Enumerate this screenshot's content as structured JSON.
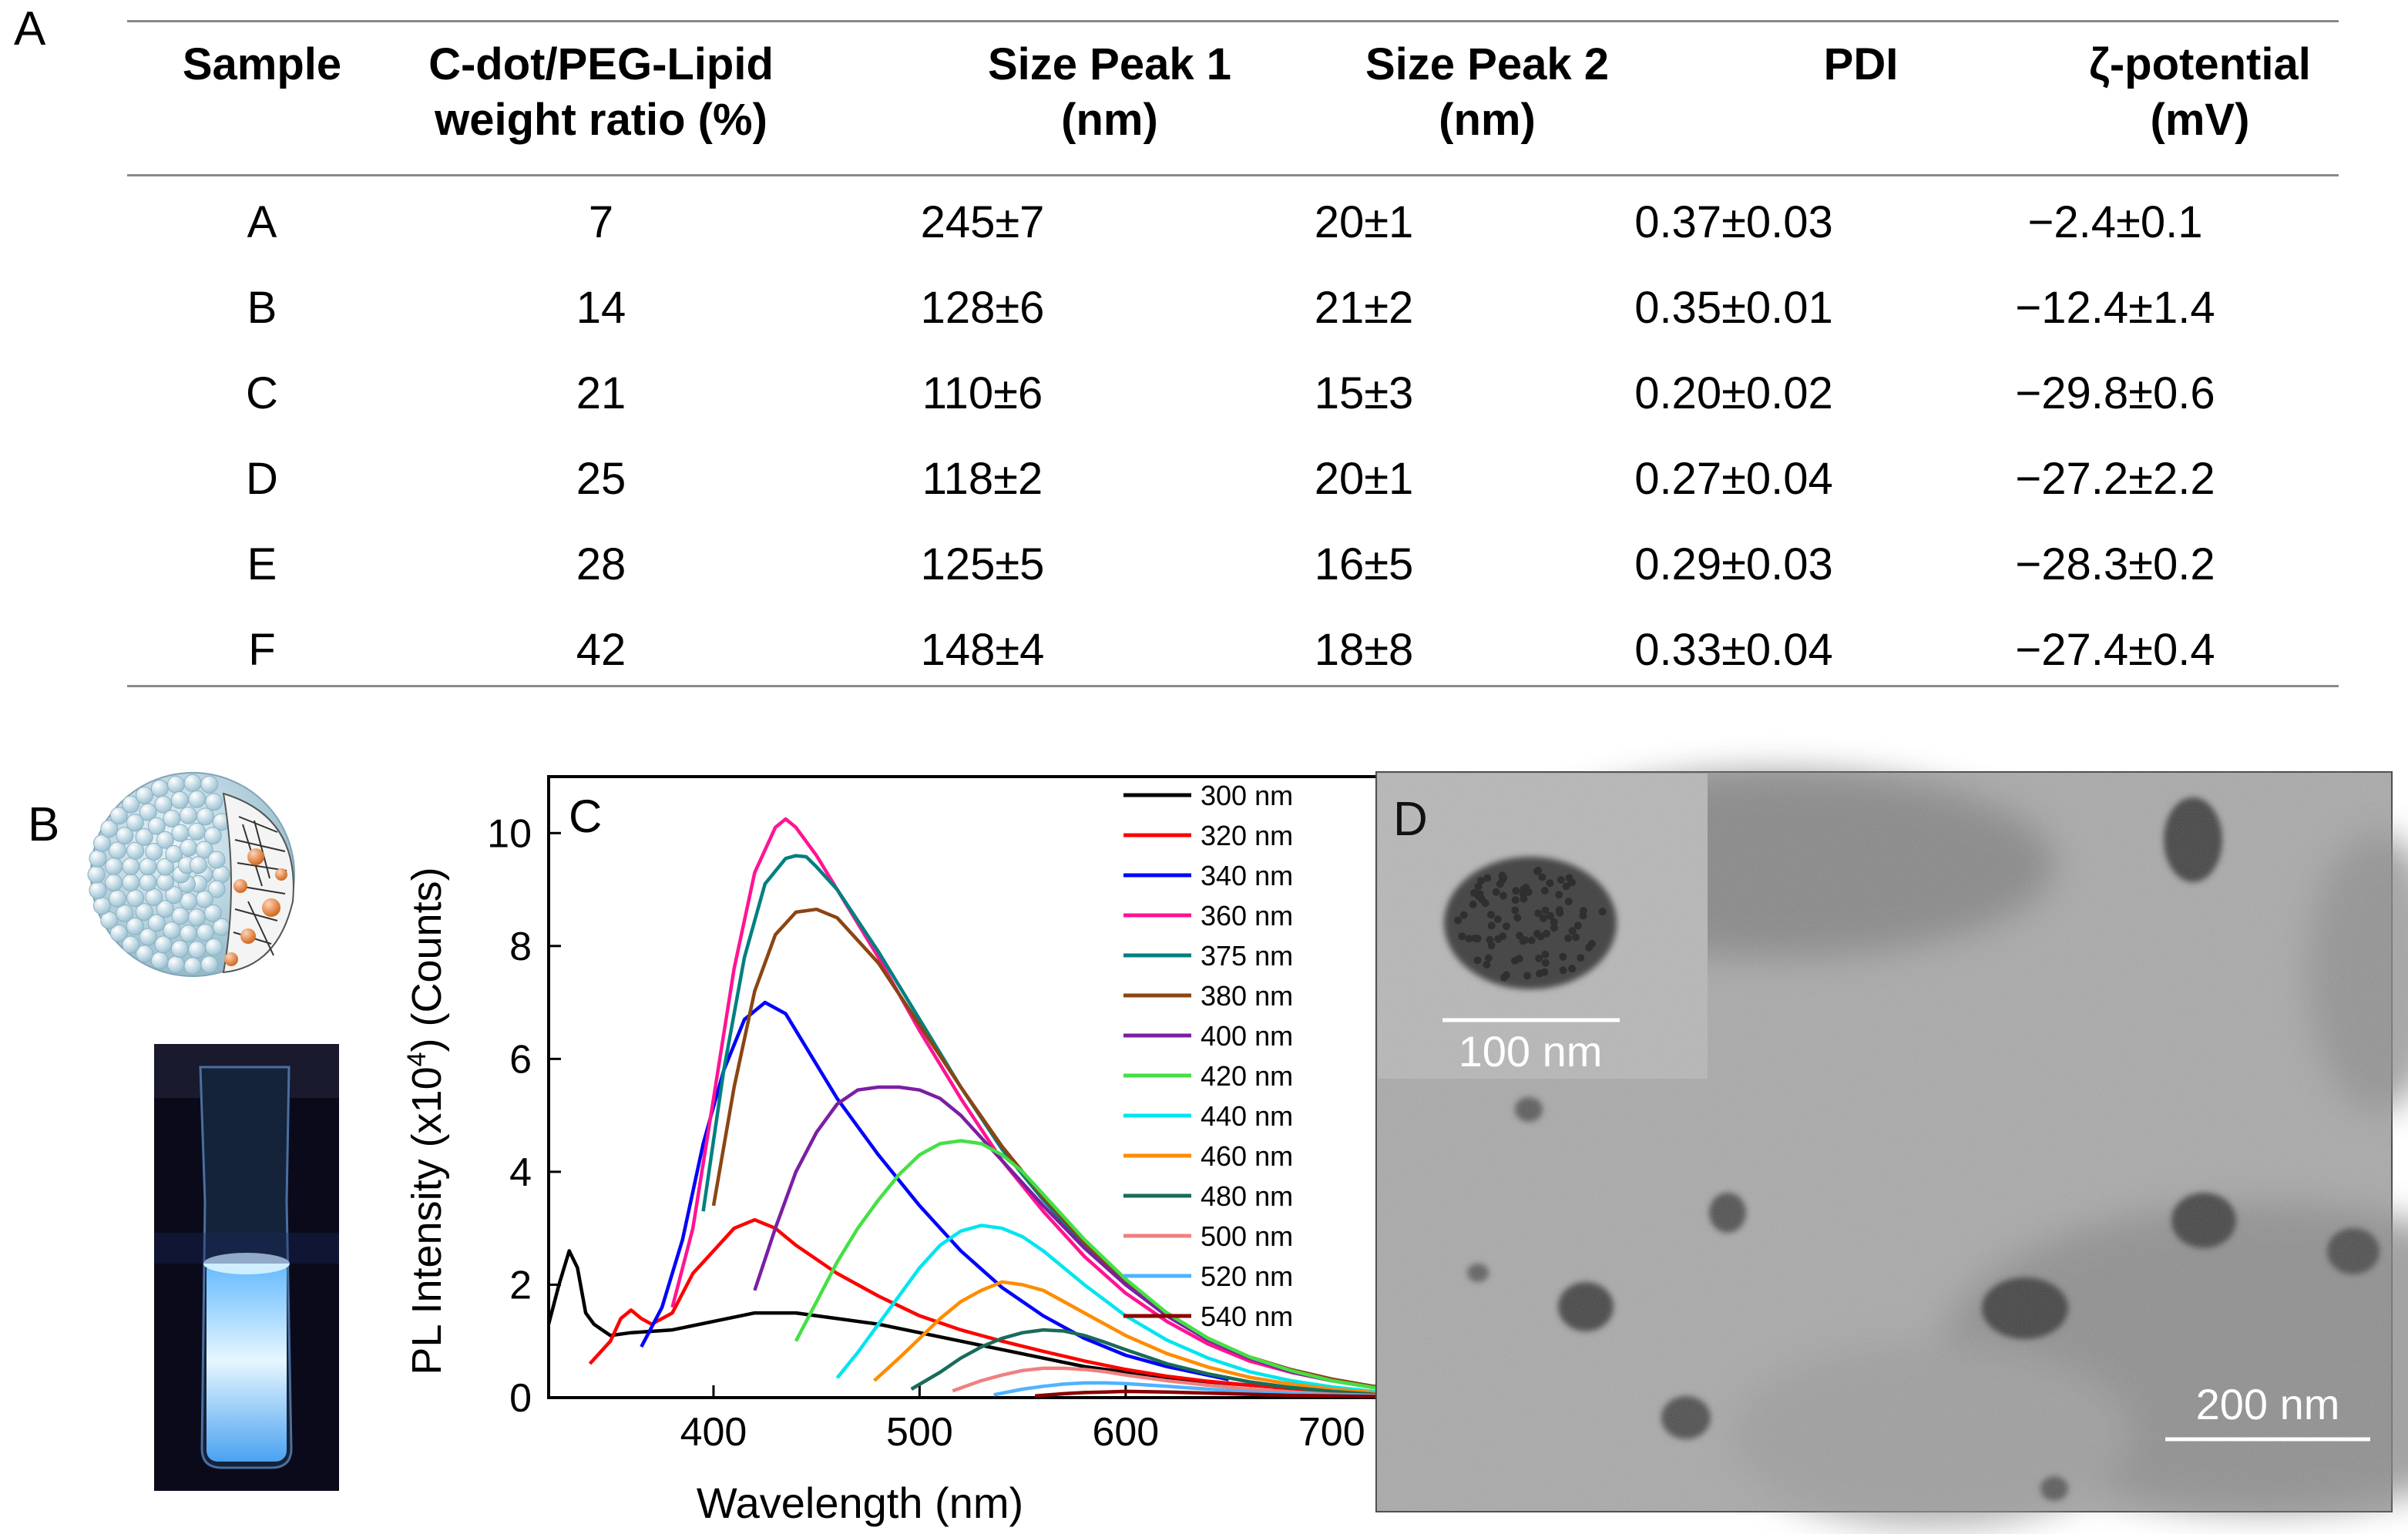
{
  "figure": {
    "panel_labels": {
      "a": "A",
      "b": "B",
      "c": "C",
      "d": "D"
    }
  },
  "table": {
    "headers": [
      [
        "Sample"
      ],
      [
        "C-dot/PEG-Lipid",
        "weight ratio (%)"
      ],
      [
        "Size Peak 1",
        "(nm)"
      ],
      [
        "Size Peak 2",
        "(nm)"
      ],
      [
        "PDI"
      ],
      [
        "ζ-potential",
        "(mV)"
      ]
    ],
    "rows": [
      [
        "A",
        "7",
        "245±7",
        "20±1",
        "0.37±0.03",
        "−2.4±0.1"
      ],
      [
        "B",
        "14",
        "128±6",
        "21±2",
        "0.35±0.01",
        "−12.4±1.4"
      ],
      [
        "C",
        "21",
        "110±6",
        "15±3",
        "0.20±0.02",
        "−29.8±0.6"
      ],
      [
        "D",
        "25",
        "118±2",
        "20±1",
        "0.27±0.04",
        "−27.2±2.2"
      ],
      [
        "E",
        "28",
        "125±5",
        "16±5",
        "0.29±0.03",
        "−28.3±0.2"
      ],
      [
        "F",
        "42",
        "148±4",
        "18±8",
        "0.33±0.04",
        "−27.4±0.4"
      ]
    ]
  },
  "micrograph": {
    "inset_scale_label": "100 nm",
    "main_scale_label": "200 nm"
  },
  "chart_data": {
    "type": "line",
    "title": "",
    "xlabel": "Wavelength (nm)",
    "ylabel_prefix": "PL Intensity (x10",
    "ylabel_exp": "4",
    "ylabel_suffix": ") (Counts)",
    "xlim": [
      320,
      750
    ],
    "ylim": [
      0,
      11
    ],
    "xticks": [
      400,
      500,
      600,
      700
    ],
    "yticks": [
      0,
      2,
      4,
      6,
      8,
      10
    ],
    "legend_position": "top-right",
    "series": [
      {
        "name": "300 nm",
        "color": "#000000",
        "x": [
          320,
          325,
          330,
          334,
          338,
          342,
          346,
          350,
          360,
          380,
          400,
          420,
          440,
          460,
          480,
          500,
          520,
          540,
          560,
          580,
          600,
          620,
          640,
          660,
          680,
          700,
          720,
          750
        ],
        "y": [
          1.3,
          2.0,
          2.6,
          2.3,
          1.5,
          1.3,
          1.2,
          1.1,
          1.15,
          1.2,
          1.35,
          1.5,
          1.5,
          1.4,
          1.3,
          1.15,
          1.0,
          0.85,
          0.7,
          0.55,
          0.45,
          0.35,
          0.28,
          0.22,
          0.17,
          0.12,
          0.08,
          0.04
        ]
      },
      {
        "name": "320 nm",
        "color": "#ff0000",
        "x": [
          340,
          350,
          355,
          360,
          365,
          370,
          380,
          390,
          400,
          410,
          420,
          430,
          440,
          460,
          480,
          500,
          520,
          540,
          560,
          580,
          600,
          620,
          640,
          660,
          680,
          700,
          720,
          750
        ],
        "y": [
          0.6,
          1.0,
          1.4,
          1.55,
          1.4,
          1.3,
          1.5,
          2.2,
          2.6,
          3.0,
          3.15,
          3.0,
          2.7,
          2.2,
          1.8,
          1.45,
          1.2,
          1.0,
          0.82,
          0.65,
          0.5,
          0.38,
          0.29,
          0.22,
          0.16,
          0.11,
          0.07,
          0.04
        ]
      },
      {
        "name": "340 nm",
        "color": "#0000ff",
        "x": [
          365,
          375,
          385,
          395,
          405,
          415,
          425,
          435,
          445,
          460,
          480,
          500,
          520,
          540,
          560,
          580,
          600,
          620,
          650
        ],
        "y": [
          0.9,
          1.6,
          2.8,
          4.5,
          5.8,
          6.7,
          7.0,
          6.8,
          6.2,
          5.3,
          4.3,
          3.4,
          2.6,
          1.95,
          1.45,
          1.05,
          0.75,
          0.55,
          0.32
        ]
      },
      {
        "name": "360 nm",
        "color": "#ff1493",
        "x": [
          380,
          390,
          400,
          410,
          420,
          430,
          435,
          440,
          450,
          460,
          480,
          500,
          520,
          540,
          560,
          580,
          600,
          620,
          640,
          660,
          680,
          700,
          720,
          750
        ],
        "y": [
          1.6,
          3.0,
          5.3,
          7.6,
          9.3,
          10.1,
          10.25,
          10.1,
          9.6,
          9.0,
          7.8,
          6.5,
          5.3,
          4.2,
          3.3,
          2.5,
          1.85,
          1.35,
          0.95,
          0.65,
          0.45,
          0.3,
          0.2,
          0.1
        ]
      },
      {
        "name": "375 nm",
        "color": "#008080",
        "x": [
          395,
          405,
          415,
          425,
          435,
          440,
          445,
          450,
          460,
          480,
          500,
          520,
          540,
          560,
          580,
          600,
          620,
          640,
          660,
          680,
          700,
          720,
          750
        ],
        "y": [
          3.3,
          5.8,
          7.8,
          9.1,
          9.55,
          9.6,
          9.58,
          9.4,
          9.0,
          7.9,
          6.7,
          5.5,
          4.4,
          3.5,
          2.7,
          2.0,
          1.45,
          1.02,
          0.7,
          0.48,
          0.32,
          0.2,
          0.1
        ]
      },
      {
        "name": "380 nm",
        "color": "#8b4513",
        "x": [
          400,
          410,
          420,
          430,
          440,
          450,
          460,
          480,
          500,
          520,
          540,
          560,
          580,
          600,
          620,
          640,
          660,
          680,
          700,
          720,
          750
        ],
        "y": [
          3.4,
          5.5,
          7.2,
          8.2,
          8.6,
          8.65,
          8.5,
          7.7,
          6.6,
          5.5,
          4.45,
          3.55,
          2.75,
          2.05,
          1.5,
          1.05,
          0.72,
          0.5,
          0.33,
          0.2,
          0.1
        ]
      },
      {
        "name": "400 nm",
        "color": "#7b1fa2",
        "x": [
          420,
          430,
          440,
          450,
          460,
          470,
          480,
          490,
          500,
          510,
          520,
          540,
          560,
          580,
          600,
          620,
          640,
          660,
          680,
          700,
          720,
          750
        ],
        "y": [
          1.9,
          3.0,
          4.0,
          4.7,
          5.2,
          5.45,
          5.5,
          5.5,
          5.45,
          5.3,
          5.0,
          4.2,
          3.4,
          2.65,
          2.0,
          1.45,
          1.02,
          0.7,
          0.46,
          0.3,
          0.18,
          0.08
        ]
      },
      {
        "name": "420 nm",
        "color": "#44e044",
        "x": [
          440,
          450,
          460,
          470,
          480,
          490,
          500,
          510,
          520,
          530,
          540,
          550,
          560,
          580,
          600,
          620,
          640,
          660,
          680,
          700,
          720,
          750
        ],
        "y": [
          1.0,
          1.7,
          2.4,
          3.0,
          3.5,
          3.95,
          4.3,
          4.5,
          4.55,
          4.5,
          4.3,
          4.0,
          3.6,
          2.8,
          2.1,
          1.5,
          1.05,
          0.72,
          0.48,
          0.3,
          0.18,
          0.08
        ]
      },
      {
        "name": "440 nm",
        "color": "#00e5ee",
        "x": [
          460,
          470,
          480,
          490,
          500,
          510,
          520,
          530,
          540,
          550,
          560,
          580,
          600,
          620,
          640,
          660,
          680,
          700,
          720,
          750
        ],
        "y": [
          0.35,
          0.8,
          1.3,
          1.8,
          2.3,
          2.7,
          2.95,
          3.05,
          3.0,
          2.85,
          2.6,
          2.0,
          1.45,
          1.02,
          0.7,
          0.46,
          0.3,
          0.19,
          0.11,
          0.05
        ]
      },
      {
        "name": "460 nm",
        "color": "#ff8c00",
        "x": [
          478,
          490,
          500,
          510,
          520,
          530,
          540,
          550,
          560,
          570,
          580,
          600,
          620,
          640,
          660,
          680,
          700,
          720,
          750
        ],
        "y": [
          0.3,
          0.7,
          1.05,
          1.4,
          1.7,
          1.9,
          2.05,
          2.0,
          1.9,
          1.7,
          1.5,
          1.1,
          0.78,
          0.54,
          0.36,
          0.24,
          0.15,
          0.09,
          0.04
        ]
      },
      {
        "name": "480 nm",
        "color": "#1a6b5a",
        "x": [
          496,
          510,
          520,
          530,
          540,
          550,
          560,
          570,
          580,
          590,
          600,
          620,
          640,
          660,
          680,
          700,
          720,
          750
        ],
        "y": [
          0.15,
          0.45,
          0.7,
          0.9,
          1.05,
          1.15,
          1.2,
          1.18,
          1.1,
          0.98,
          0.85,
          0.6,
          0.42,
          0.28,
          0.18,
          0.11,
          0.06,
          0.03
        ]
      },
      {
        "name": "500 nm",
        "color": "#f08080",
        "x": [
          516,
          530,
          540,
          550,
          560,
          570,
          580,
          590,
          600,
          620,
          640,
          660,
          680,
          700,
          720,
          750
        ],
        "y": [
          0.12,
          0.3,
          0.4,
          0.48,
          0.52,
          0.52,
          0.5,
          0.46,
          0.4,
          0.3,
          0.22,
          0.15,
          0.1,
          0.06,
          0.04,
          0.02
        ]
      },
      {
        "name": "520 nm",
        "color": "#4fb3ff",
        "x": [
          536,
          550,
          560,
          570,
          580,
          590,
          600,
          620,
          640,
          660,
          680,
          700,
          720,
          750
        ],
        "y": [
          0.05,
          0.15,
          0.2,
          0.24,
          0.26,
          0.26,
          0.25,
          0.2,
          0.15,
          0.1,
          0.07,
          0.05,
          0.03,
          0.02
        ]
      },
      {
        "name": "540 nm",
        "color": "#8b0000",
        "x": [
          556,
          570,
          580,
          590,
          600,
          620,
          640,
          660,
          680,
          700,
          720,
          750
        ],
        "y": [
          0.03,
          0.07,
          0.09,
          0.1,
          0.11,
          0.1,
          0.08,
          0.06,
          0.04,
          0.03,
          0.02,
          0.01
        ]
      }
    ]
  }
}
